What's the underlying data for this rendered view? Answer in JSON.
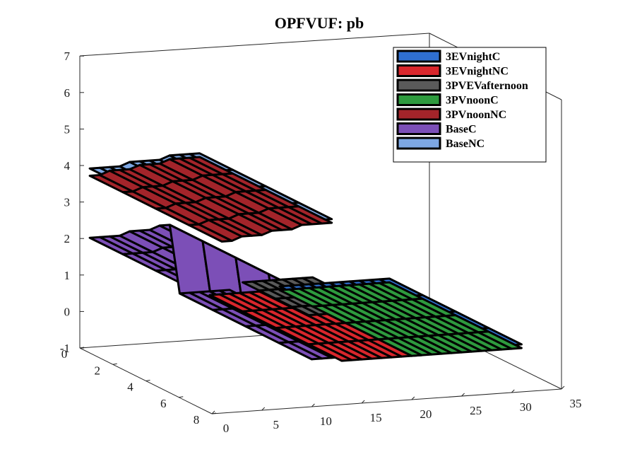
{
  "chart_data": {
    "type": "surface3d",
    "title": "OPFVUF: pb",
    "xlabel": "",
    "ylabel": "",
    "zlabel": "",
    "xlim": [
      0,
      35
    ],
    "ylim": [
      0,
      8
    ],
    "zlim": [
      -1,
      7
    ],
    "x_ticks": [
      "0",
      "5",
      "10",
      "15",
      "20",
      "25",
      "30",
      "35"
    ],
    "y_ticks": [
      "0",
      "2",
      "4",
      "6",
      "8"
    ],
    "z_ticks": [
      "-1",
      "0",
      "1",
      "2",
      "3",
      "4",
      "5",
      "6",
      "7"
    ],
    "legend_position": "top-right",
    "colors": {
      "3EVnightC": "#2f6fd1",
      "3EVnightNC": "#d9262c",
      "3PVEVafternoon": "#5a5a5a",
      "3PVnoonC": "#2e9a3e",
      "3PVnoonNC": "#a3242a",
      "BaseC": "#7c4fb7",
      "BaseNC": "#7da7e3"
    },
    "legend": [
      "3EVnightC",
      "3EVnightNC",
      "3PVEVafternoon",
      "3PVnoonC",
      "3PVnoonNC",
      "BaseC",
      "BaseNC"
    ],
    "series": [
      {
        "name": "BaseNC",
        "x": [
          1,
          2,
          3,
          4,
          5,
          6,
          7,
          8,
          9,
          10,
          11,
          12
        ],
        "y_range": [
          0,
          8
        ],
        "z": [
          3.9,
          3.9,
          3.9,
          3.9,
          4.0,
          4.0,
          4.0,
          4.0,
          4.1,
          4.1,
          4.1,
          4.1
        ]
      },
      {
        "name": "3PVnoonNC",
        "x": [
          1,
          2,
          3,
          4,
          5,
          6,
          7,
          8,
          9,
          10,
          11,
          12
        ],
        "y_range": [
          0,
          8
        ],
        "z": [
          3.7,
          3.7,
          3.8,
          3.8,
          3.8,
          3.9,
          3.9,
          3.9,
          4.0,
          4.0,
          4.0,
          4.0
        ]
      },
      {
        "name": "BaseC",
        "x": [
          1,
          2,
          3,
          4,
          5,
          6,
          7,
          8,
          9,
          10,
          11,
          12,
          13,
          14,
          15
        ],
        "y_range": [
          0,
          8
        ],
        "z": [
          2.0,
          2.0,
          2.0,
          2.0,
          2.1,
          2.1,
          2.1,
          2.2,
          2.2,
          0.3,
          0.3,
          0.3,
          0.3,
          0.3,
          0.3
        ]
      },
      {
        "name": "3EVnightNC",
        "x": [
          13,
          14,
          15,
          16,
          17,
          18,
          19,
          20,
          21
        ],
        "y_range": [
          0,
          8
        ],
        "z": [
          0.2,
          0.2,
          0.2,
          0.2,
          0.2,
          0.2,
          0.2,
          0.2,
          0.2
        ]
      },
      {
        "name": "3PVEVafternoon",
        "x": [
          13,
          14,
          15,
          16,
          17,
          18,
          19,
          20
        ],
        "y_range": [
          2,
          6
        ],
        "z": [
          1.0,
          1.0,
          1.0,
          1.0,
          1.0,
          1.0,
          1.0,
          1.0
        ]
      },
      {
        "name": "3EVnightC",
        "x": [
          20,
          21,
          22,
          23,
          24,
          25,
          26,
          27,
          28,
          29,
          30,
          31
        ],
        "y_range": [
          0,
          8
        ],
        "z": [
          0.3,
          0.3,
          0.3,
          0.3,
          0.3,
          0.3,
          0.3,
          0.3,
          0.3,
          0.3,
          0.3,
          0.3
        ]
      },
      {
        "name": "3PVnoonC",
        "x": [
          20,
          21,
          22,
          23,
          24,
          25,
          26,
          27,
          28,
          29,
          30,
          31
        ],
        "y_range": [
          0,
          8
        ],
        "z": [
          0.2,
          0.2,
          0.2,
          0.2,
          0.2,
          0.2,
          0.2,
          0.2,
          0.2,
          0.2,
          0.2,
          0.2
        ]
      }
    ]
  }
}
